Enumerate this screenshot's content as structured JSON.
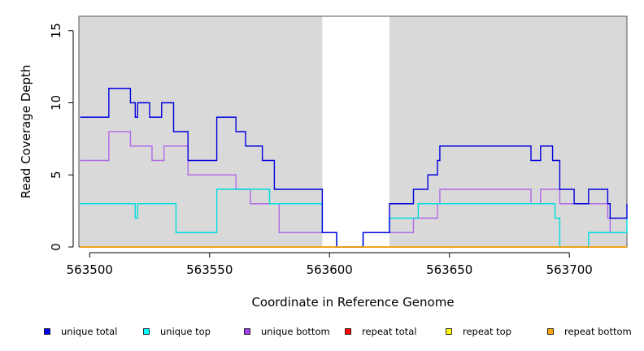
{
  "chart_data": {
    "type": "line",
    "title": "",
    "xlabel": "Coordinate in Reference Genome",
    "ylabel": "Read Coverage Depth",
    "xlim": [
      563495.5,
      563724
    ],
    "ylim": [
      0,
      16
    ],
    "x_ticks": [
      563500,
      563550,
      563600,
      563650,
      563700
    ],
    "y_ticks": [
      0,
      5,
      10,
      15
    ],
    "shaded_regions": [
      [
        563495.5,
        563597
      ],
      [
        563625,
        563724
      ]
    ],
    "series": [
      {
        "name": "unique total",
        "color": "#0000dd",
        "points": [
          [
            563496,
            9
          ],
          [
            563508,
            9
          ],
          [
            563508,
            11
          ],
          [
            563517,
            11
          ],
          [
            563517,
            10
          ],
          [
            563519,
            10
          ],
          [
            563519,
            9
          ],
          [
            563520,
            9
          ],
          [
            563520,
            10
          ],
          [
            563525,
            10
          ],
          [
            563525,
            9
          ],
          [
            563530,
            9
          ],
          [
            563530,
            10
          ],
          [
            563535,
            10
          ],
          [
            563535,
            8
          ],
          [
            563541,
            8
          ],
          [
            563541,
            6
          ],
          [
            563553,
            6
          ],
          [
            563553,
            9
          ],
          [
            563561,
            9
          ],
          [
            563561,
            8
          ],
          [
            563565,
            8
          ],
          [
            563565,
            7
          ],
          [
            563572,
            7
          ],
          [
            563572,
            6
          ],
          [
            563577,
            6
          ],
          [
            563577,
            4
          ],
          [
            563597,
            4
          ],
          [
            563597,
            1
          ],
          [
            563603,
            1
          ],
          [
            563603,
            0
          ],
          [
            563614,
            0
          ],
          [
            563614,
            1
          ],
          [
            563625,
            1
          ],
          [
            563625,
            3
          ],
          [
            563635,
            3
          ],
          [
            563635,
            4
          ],
          [
            563641,
            4
          ],
          [
            563641,
            5
          ],
          [
            563645,
            5
          ],
          [
            563645,
            6
          ],
          [
            563646,
            6
          ],
          [
            563646,
            7
          ],
          [
            563684,
            7
          ],
          [
            563684,
            6
          ],
          [
            563688,
            6
          ],
          [
            563688,
            7
          ],
          [
            563693,
            7
          ],
          [
            563693,
            6
          ],
          [
            563696,
            6
          ],
          [
            563696,
            4
          ],
          [
            563702,
            4
          ],
          [
            563702,
            3
          ],
          [
            563708,
            3
          ],
          [
            563708,
            4
          ],
          [
            563716,
            4
          ],
          [
            563716,
            3
          ],
          [
            563717,
            3
          ],
          [
            563717,
            2
          ],
          [
            563724,
            2
          ],
          [
            563724,
            3
          ]
        ]
      },
      {
        "name": "unique top",
        "color": "#00dddd",
        "points": [
          [
            563496,
            3
          ],
          [
            563519,
            3
          ],
          [
            563519,
            2
          ],
          [
            563520,
            2
          ],
          [
            563520,
            3
          ],
          [
            563536,
            3
          ],
          [
            563536,
            1
          ],
          [
            563553,
            1
          ],
          [
            563553,
            4
          ],
          [
            563575,
            4
          ],
          [
            563575,
            3
          ],
          [
            563597,
            3
          ],
          [
            563597,
            1
          ],
          [
            563603,
            1
          ],
          [
            563603,
            0
          ],
          [
            563614,
            0
          ],
          [
            563614,
            1
          ],
          [
            563625,
            1
          ],
          [
            563625,
            2
          ],
          [
            563637,
            2
          ],
          [
            563637,
            3
          ],
          [
            563694,
            3
          ],
          [
            563694,
            2
          ],
          [
            563696,
            2
          ],
          [
            563696,
            0
          ],
          [
            563708,
            0
          ],
          [
            563708,
            1
          ],
          [
            563724,
            1
          ],
          [
            563724,
            2
          ]
        ]
      },
      {
        "name": "unique bottom",
        "color": "#b06ae8",
        "points": [
          [
            563496,
            6
          ],
          [
            563508,
            6
          ],
          [
            563508,
            8
          ],
          [
            563517,
            8
          ],
          [
            563517,
            7
          ],
          [
            563526,
            7
          ],
          [
            563526,
            6
          ],
          [
            563531,
            6
          ],
          [
            563531,
            7
          ],
          [
            563541,
            7
          ],
          [
            563541,
            5
          ],
          [
            563561,
            5
          ],
          [
            563561,
            4
          ],
          [
            563567,
            4
          ],
          [
            563567,
            3
          ],
          [
            563579,
            3
          ],
          [
            563579,
            1
          ],
          [
            563597,
            1
          ],
          [
            563603,
            1
          ],
          [
            563603,
            0
          ],
          [
            563614,
            0
          ],
          [
            563614,
            1
          ],
          [
            563625,
            1
          ],
          [
            563635,
            1
          ],
          [
            563635,
            2
          ],
          [
            563645,
            2
          ],
          [
            563645,
            3
          ],
          [
            563646,
            3
          ],
          [
            563646,
            4
          ],
          [
            563684,
            4
          ],
          [
            563684,
            3
          ],
          [
            563688,
            3
          ],
          [
            563688,
            4
          ],
          [
            563696,
            4
          ],
          [
            563696,
            3
          ],
          [
            563716,
            3
          ],
          [
            563716,
            2
          ],
          [
            563717,
            2
          ],
          [
            563717,
            1
          ],
          [
            563724,
            1
          ]
        ]
      },
      {
        "name": "repeat total",
        "color": "#ee0000",
        "points": [
          [
            563496,
            0
          ],
          [
            563724,
            0
          ]
        ]
      },
      {
        "name": "repeat top",
        "color": "#eeee00",
        "points": [
          [
            563496,
            0
          ],
          [
            563724,
            0
          ]
        ]
      },
      {
        "name": "repeat bottom",
        "color": "#f2a010",
        "points": [
          [
            563496,
            0
          ],
          [
            563724,
            0
          ]
        ]
      }
    ],
    "legend": [
      {
        "label": "unique total",
        "color": "#0000ff"
      },
      {
        "label": "unique top",
        "color": "#00ffff"
      },
      {
        "label": "unique bottom",
        "color": "#a040f0"
      },
      {
        "label": "repeat total",
        "color": "#ff0000"
      },
      {
        "label": "repeat top",
        "color": "#ffff00"
      },
      {
        "label": "repeat bottom",
        "color": "#ffa500"
      }
    ],
    "legend_position": "bottom"
  }
}
